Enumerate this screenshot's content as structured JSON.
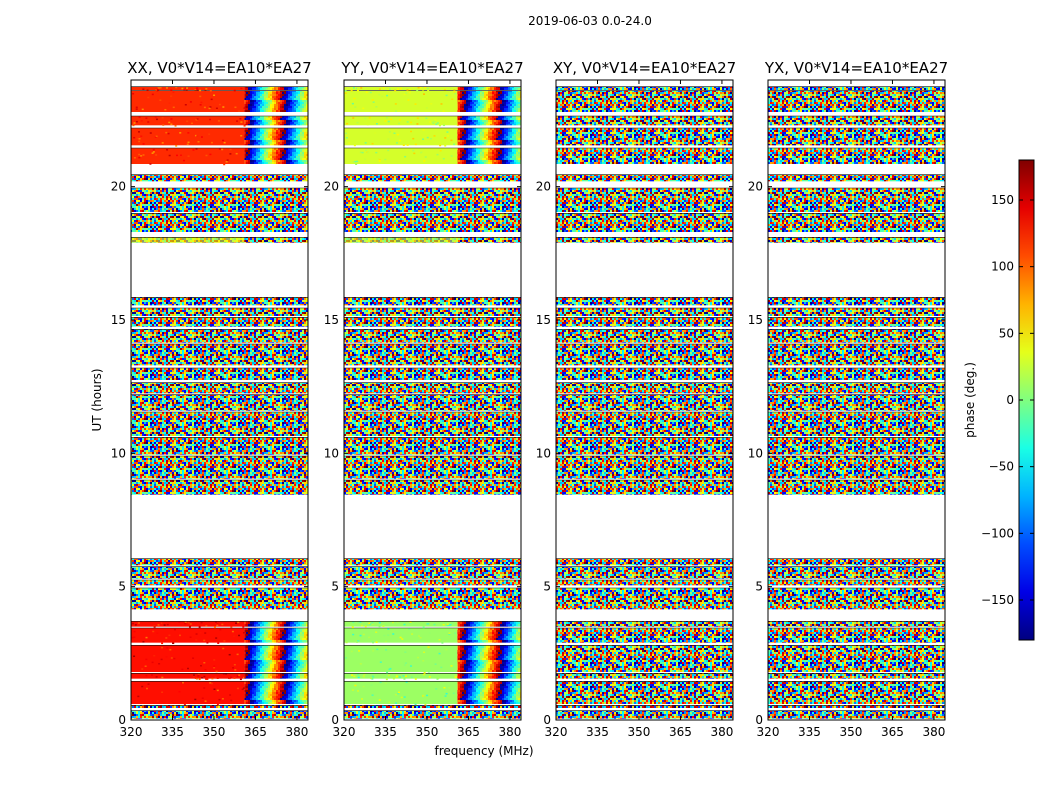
{
  "chart_data": {
    "type": "heatmap",
    "suptitle": "2019-06-03 0.0-24.0",
    "panels": [
      {
        "title": "XX, V0*V14=EA10*EA27",
        "base_low": 130,
        "base_high": 120,
        "base_mid": 40,
        "coherent_low": [
          0.6,
          3.7
        ],
        "coherent_high": [
          21.0,
          23.7
        ]
      },
      {
        "title": "YY, V0*V14=EA10*EA27",
        "base_low": 10,
        "base_high": 30,
        "base_mid": 30,
        "coherent_low": [
          0.6,
          3.7
        ],
        "coherent_high": [
          21.0,
          23.7
        ]
      },
      {
        "title": "XY, V0*V14=EA10*EA27",
        "base_low": null,
        "base_high": null,
        "base_mid": null,
        "coherent_low": null,
        "coherent_high": null
      },
      {
        "title": "YX, V0*V14=EA10*EA27",
        "base_low": null,
        "base_high": null,
        "base_mid": null,
        "coherent_low": null,
        "coherent_high": null
      }
    ],
    "xlabel": "frequency (MHz)",
    "ylabel": "UT (hours)",
    "xlim": [
      320,
      384
    ],
    "xticks": [
      320,
      335,
      350,
      365,
      380
    ],
    "ylim": [
      0,
      24
    ],
    "yticks": [
      0,
      5,
      10,
      15,
      20
    ],
    "rfi_band_mhz": [
      361,
      384
    ],
    "colorbar": {
      "label": "phase (deg.)",
      "vmin": -180,
      "vmax": 180,
      "ticks": [
        -150,
        -100,
        -50,
        0,
        50,
        100,
        150
      ],
      "tick_labels": [
        "−150",
        "−100",
        "−50",
        "0",
        "50",
        "100",
        "150"
      ],
      "colormap": "jet"
    },
    "data_intervals_hours": [
      [
        0.05,
        0.35
      ],
      [
        0.45,
        0.55
      ],
      [
        0.6,
        1.45
      ],
      [
        1.55,
        1.75
      ],
      [
        1.8,
        2.8
      ],
      [
        2.9,
        3.45
      ],
      [
        3.5,
        3.7
      ],
      [
        4.15,
        4.95
      ],
      [
        5.05,
        5.25
      ],
      [
        5.3,
        5.75
      ],
      [
        5.8,
        6.05
      ],
      [
        8.45,
        9.0
      ],
      [
        9.05,
        9.9
      ],
      [
        9.95,
        10.6
      ],
      [
        10.65,
        11.55
      ],
      [
        11.6,
        12.2
      ],
      [
        12.25,
        12.65
      ],
      [
        12.75,
        13.2
      ],
      [
        13.3,
        14.1
      ],
      [
        14.15,
        14.65
      ],
      [
        14.75,
        15.1
      ],
      [
        15.15,
        15.45
      ],
      [
        15.55,
        15.85
      ],
      [
        17.9,
        18.1
      ],
      [
        18.3,
        19.0
      ],
      [
        19.05,
        19.95
      ],
      [
        20.2,
        20.45
      ],
      [
        20.85,
        21.45
      ],
      [
        21.55,
        22.2
      ],
      [
        22.3,
        22.65
      ],
      [
        22.8,
        23.6
      ],
      [
        23.62,
        23.75
      ]
    ]
  }
}
